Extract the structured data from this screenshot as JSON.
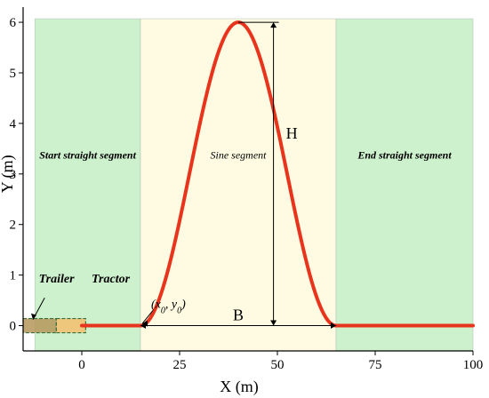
{
  "chart_data": {
    "type": "line",
    "xlabel": "X (m)",
    "ylabel": "Y (m)",
    "xlim": [
      -15,
      100
    ],
    "ylim": [
      -0.5,
      6.3
    ],
    "x_ticks": [
      0,
      25,
      50,
      75,
      100
    ],
    "y_ticks": [
      0,
      1,
      2,
      3,
      4,
      5,
      6
    ],
    "grid": false,
    "segments": [
      {
        "name": "Start straight segment",
        "x_start": -12,
        "x_end": 15,
        "color": "#cdf0cd"
      },
      {
        "name": "Sine segment",
        "x_start": 15,
        "x_end": 65,
        "color": "#fefbe2"
      },
      {
        "name": "End straight segment",
        "x_start": 65,
        "x_end": 100,
        "color": "#cdf0cd"
      }
    ],
    "path": {
      "x0": 15,
      "B": 50,
      "H": 6,
      "x_start": 0,
      "x_end": 100,
      "color": "#e8341c"
    },
    "annotations": {
      "height_label": "H",
      "width_label": "B",
      "origin_label": "(x0, y0)"
    },
    "vehicles": [
      {
        "name": "Trailer",
        "x_start": -15,
        "x_end": -6.5,
        "color": "#b5975a"
      },
      {
        "name": "Tractor",
        "x_start": -6.5,
        "x_end": 1,
        "color": "#f4bf6d"
      }
    ]
  }
}
